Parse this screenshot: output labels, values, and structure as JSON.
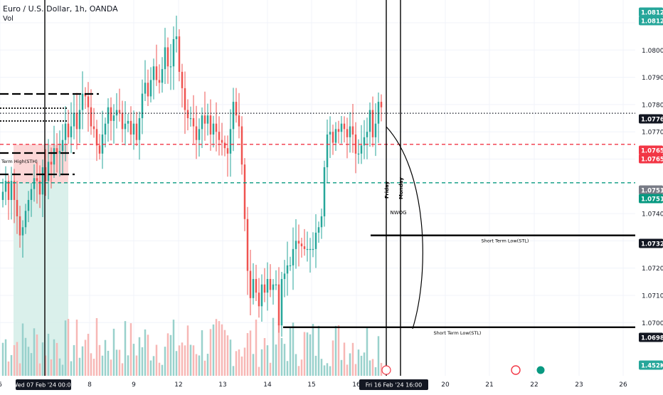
{
  "header": {
    "title": "Euro / U.S. Dollar, 1h, OANDA",
    "volume_label": "Vol"
  },
  "colors": {
    "up": "#26a69a",
    "down": "#ef5350",
    "vol_up": "#99d1cc",
    "vol_down": "#f7b7b5",
    "grid": "#f0f3fa",
    "axis_text": "#131722",
    "red_line": "#f23645",
    "green_line": "#089981",
    "target_zone": "#d3ede8",
    "stop_zone": "#fcd3d3"
  },
  "chart_data": {
    "type": "candlestick",
    "symbol": "EURUSD",
    "interval": "1h",
    "ylim": [
      1.069,
      1.0815
    ],
    "y_ticks": [
      "1.08100",
      "1.08000",
      "1.07900",
      "1.07800",
      "1.07700",
      "1.07600",
      "1.07400",
      "1.07300",
      "1.07200",
      "1.07100",
      "1.07000"
    ],
    "x_ticks": [
      "6",
      "8",
      "9",
      "12",
      "13",
      "14",
      "15",
      "16",
      "20",
      "21",
      "22",
      "23",
      "26"
    ],
    "x_ticks_highlight": [
      "Wed 07 Feb '24  00:00",
      "Fri 16 Feb '24  16:00"
    ],
    "price_labels": [
      {
        "text": "1.08129",
        "kind": "last"
      },
      {
        "text": "1.08123",
        "kind": "last"
      },
      {
        "text": "1.07768",
        "kind": "black"
      },
      {
        "text": "1.07654",
        "kind": "red"
      },
      {
        "text": "1.07652",
        "kind": "red"
      },
      {
        "text": "1.07513",
        "kind": "gray"
      },
      {
        "text": "1.07511",
        "kind": "green"
      },
      {
        "text": "1.07320",
        "kind": "black"
      },
      {
        "text": "1.06983",
        "kind": "black"
      },
      {
        "text": "1.452K",
        "kind": "vol"
      }
    ],
    "levels": [
      {
        "price": 1.07768,
        "style": "dotted",
        "color": "black"
      },
      {
        "price": 1.07654,
        "style": "dashed",
        "color": "red"
      },
      {
        "price": 1.07513,
        "style": "dashed",
        "color": "green"
      },
      {
        "price": 1.0732,
        "style": "solid",
        "color": "black",
        "label": "Short Term Low(STL)"
      },
      {
        "price": 1.06983,
        "style": "solid",
        "color": "black",
        "label": "Short Term Low(STL)"
      }
    ],
    "annotations": [
      "Term High(STH)",
      "Friday",
      "Monday",
      "NWOG"
    ],
    "close_series": [
      1.0748,
      1.0752,
      1.0745,
      1.0752,
      1.0745,
      1.0739,
      1.0732,
      1.0735,
      1.0741,
      1.0745,
      1.0749,
      1.0753,
      1.0752,
      1.0747,
      1.0757,
      1.0752,
      1.0759,
      1.0758,
      1.0764,
      1.0762,
      1.0763,
      1.0767,
      1.0773,
      1.0768,
      1.0772,
      1.0777,
      1.0771,
      1.0778,
      1.0784,
      1.0783,
      1.0779,
      1.0772,
      1.0771,
      1.0765,
      1.0762,
      1.0769,
      1.0773,
      1.0779,
      1.0774,
      1.0776,
      1.0778,
      1.0777,
      1.0771,
      1.0773,
      1.0774,
      1.0769,
      1.0773,
      1.0767,
      1.0775,
      1.0784,
      1.0788,
      1.0783,
      1.0789,
      1.0794,
      1.0789,
      1.0788,
      1.0793,
      1.0801,
      1.0794,
      1.0794,
      1.0804,
      1.0805,
      1.0792,
      1.0786,
      1.0778,
      1.0775,
      1.0775,
      1.0772,
      1.0767,
      1.0771,
      1.0776,
      1.0773,
      1.0776,
      1.0769,
      1.0773,
      1.077,
      1.0767,
      1.0766,
      1.0764,
      1.0762,
      1.0771,
      1.0781,
      1.0776,
      1.0772,
      1.0758,
      1.0738,
      1.0719,
      1.0709,
      1.0716,
      1.0711,
      1.0706,
      1.0714,
      1.0711,
      1.0716,
      1.0712,
      1.0714,
      1.0714,
      1.0699,
      1.0716,
      1.0718,
      1.0721,
      1.0721,
      1.0727,
      1.073,
      1.0729,
      1.0728,
      1.0727,
      1.0727,
      1.0727,
      1.0727,
      1.0733,
      1.0735,
      1.0739,
      1.0757,
      1.0769,
      1.077,
      1.0766,
      1.0771,
      1.077,
      1.0773,
      1.0771,
      1.0768,
      1.0772,
      1.0769,
      1.0762,
      1.0762,
      1.0765,
      1.0768,
      1.077,
      1.0778,
      1.0768,
      1.0773,
      1.0781,
      1.0779
    ]
  }
}
